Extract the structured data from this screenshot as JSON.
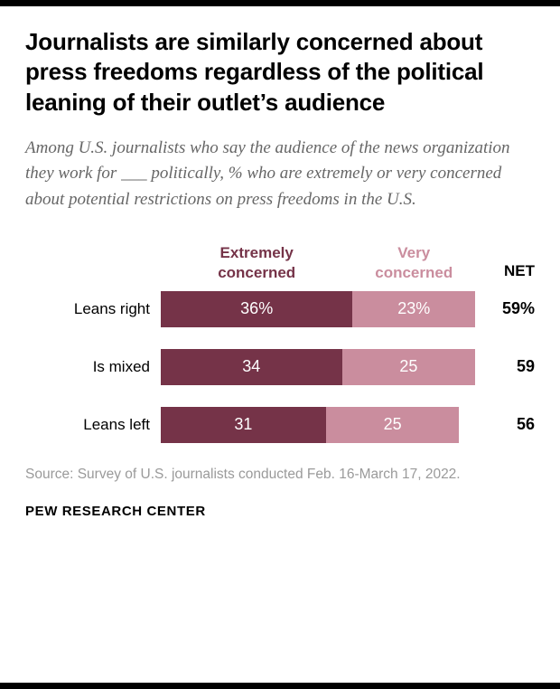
{
  "header": {
    "title": "Journalists are similarly concerned about press freedoms regardless of the political leaning of their outlet’s audience",
    "subtitle": "Among U.S. journalists who say the audience of the news organization they work for ___ politically, % who are extremely or very concerned about potential restrictions on press freedoms in the U.S."
  },
  "chart_data": {
    "type": "bar",
    "orientation": "horizontal",
    "stacked": true,
    "categories": [
      "Leans right",
      "Is mixed",
      "Leans left"
    ],
    "series": [
      {
        "name": "Extremely concerned",
        "header_label": "Extremely\nconcerned",
        "color": "#753348",
        "values": [
          36,
          34,
          31
        ],
        "display_labels": [
          "36%",
          "34",
          "31"
        ]
      },
      {
        "name": "Very concerned",
        "header_label": "Very\nconcerned",
        "color": "#ca8d9e",
        "values": [
          23,
          25,
          25
        ],
        "display_labels": [
          "23%",
          "25",
          "25"
        ]
      }
    ],
    "net": {
      "label": "NET",
      "values": [
        59,
        59,
        56
      ],
      "display_values": [
        "59%",
        "59",
        "56"
      ]
    },
    "xlim": [
      0,
      59
    ],
    "grid": false,
    "legend_position": "top"
  },
  "footer": {
    "source": "Source: Survey of U.S. journalists conducted Feb. 16-March 17, 2022.",
    "brand": "PEW RESEARCH CENTER"
  }
}
